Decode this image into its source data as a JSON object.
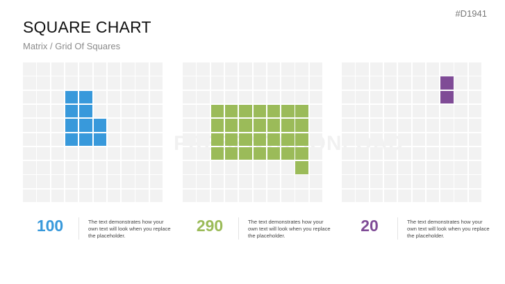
{
  "header": {
    "title": "SQUARE CHART",
    "subtitle": "Matrix / Grid Of Squares",
    "code": "#D1941"
  },
  "watermark": "PRESENTATIONLOAD",
  "chart_data": [
    {
      "type": "heatmap",
      "grid": [
        10,
        10
      ],
      "unit_value": 10,
      "value": 100,
      "color": "#3899db",
      "filled": [
        [
          2,
          3
        ],
        [
          2,
          4
        ],
        [
          3,
          3
        ],
        [
          3,
          4
        ],
        [
          4,
          3
        ],
        [
          4,
          4
        ],
        [
          4,
          5
        ],
        [
          5,
          3
        ],
        [
          5,
          4
        ],
        [
          5,
          5
        ]
      ],
      "label": "100",
      "description": "The text demonstrates how your own text will look when you replace the placeholder."
    },
    {
      "type": "heatmap",
      "grid": [
        10,
        10
      ],
      "unit_value": 10,
      "value": 290,
      "color": "#9bbb59",
      "filled": [
        [
          3,
          2
        ],
        [
          3,
          3
        ],
        [
          3,
          4
        ],
        [
          3,
          5
        ],
        [
          3,
          6
        ],
        [
          3,
          7
        ],
        [
          3,
          8
        ],
        [
          4,
          2
        ],
        [
          4,
          3
        ],
        [
          4,
          4
        ],
        [
          4,
          5
        ],
        [
          4,
          6
        ],
        [
          4,
          7
        ],
        [
          4,
          8
        ],
        [
          5,
          2
        ],
        [
          5,
          3
        ],
        [
          5,
          4
        ],
        [
          5,
          5
        ],
        [
          5,
          6
        ],
        [
          5,
          7
        ],
        [
          5,
          8
        ],
        [
          6,
          2
        ],
        [
          6,
          3
        ],
        [
          6,
          4
        ],
        [
          6,
          5
        ],
        [
          6,
          6
        ],
        [
          6,
          7
        ],
        [
          6,
          8
        ],
        [
          7,
          8
        ]
      ],
      "label": "290",
      "description": "The text demonstrates how your own text will look when you replace the placeholder."
    },
    {
      "type": "heatmap",
      "grid": [
        10,
        10
      ],
      "unit_value": 10,
      "value": 20,
      "color": "#7f4b96",
      "filled": [
        [
          1,
          7
        ],
        [
          2,
          7
        ]
      ],
      "label": "20",
      "description": "The text demonstrates how your own text will look when you replace the placeholder."
    }
  ]
}
